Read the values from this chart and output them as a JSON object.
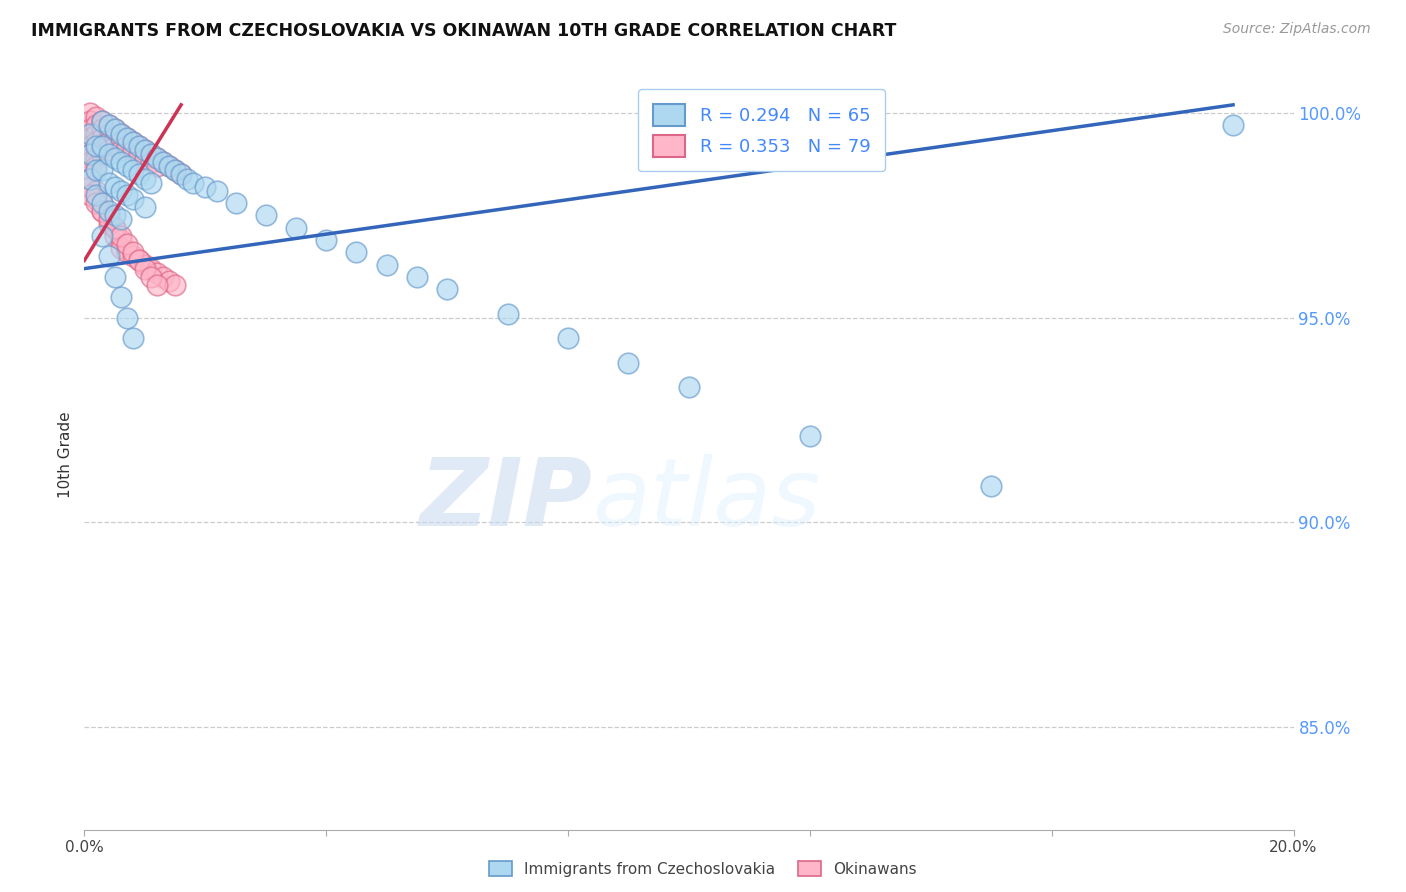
{
  "title": "IMMIGRANTS FROM CZECHOSLOVAKIA VS OKINAWAN 10TH GRADE CORRELATION CHART",
  "source": "Source: ZipAtlas.com",
  "ylabel": "10th Grade",
  "ylabel_right_labels": [
    "100.0%",
    "95.0%",
    "90.0%",
    "85.0%"
  ],
  "ylabel_right_values": [
    1.0,
    0.95,
    0.9,
    0.85
  ],
  "xmin": 0.0,
  "xmax": 0.2,
  "ymin": 0.825,
  "ymax": 1.008,
  "blue_label": "Immigrants from Czechoslovakia",
  "pink_label": "Okinawans",
  "blue_R": 0.294,
  "blue_N": 65,
  "pink_R": 0.353,
  "pink_N": 79,
  "blue_color": "#ADD8F0",
  "pink_color": "#FFB6C8",
  "blue_edge_color": "#6699CC",
  "pink_edge_color": "#DD6688",
  "blue_line_color": "#3366BB",
  "pink_line_color": "#CC3355",
  "watermark_zip": "ZIP",
  "watermark_atlas": "atlas",
  "blue_trend_x": [
    0.0,
    0.19
  ],
  "blue_trend_y": [
    0.962,
    1.002
  ],
  "pink_trend_x": [
    0.0,
    0.016
  ],
  "pink_trend_y": [
    0.964,
    1.002
  ],
  "blue_x": [
    0.001,
    0.001,
    0.001,
    0.002,
    0.002,
    0.002,
    0.003,
    0.003,
    0.003,
    0.003,
    0.004,
    0.004,
    0.004,
    0.004,
    0.005,
    0.005,
    0.005,
    0.005,
    0.006,
    0.006,
    0.006,
    0.006,
    0.007,
    0.007,
    0.007,
    0.008,
    0.008,
    0.008,
    0.009,
    0.009,
    0.01,
    0.01,
    0.01,
    0.011,
    0.011,
    0.012,
    0.013,
    0.014,
    0.015,
    0.016,
    0.017,
    0.018,
    0.02,
    0.022,
    0.025,
    0.03,
    0.035,
    0.04,
    0.045,
    0.05,
    0.055,
    0.06,
    0.07,
    0.08,
    0.09,
    0.1,
    0.12,
    0.15,
    0.19,
    0.003,
    0.004,
    0.005,
    0.006,
    0.007,
    0.008
  ],
  "blue_y": [
    0.995,
    0.99,
    0.984,
    0.992,
    0.986,
    0.98,
    0.998,
    0.992,
    0.986,
    0.978,
    0.997,
    0.99,
    0.983,
    0.976,
    0.996,
    0.989,
    0.982,
    0.975,
    0.995,
    0.988,
    0.981,
    0.974,
    0.994,
    0.987,
    0.98,
    0.993,
    0.986,
    0.979,
    0.992,
    0.985,
    0.991,
    0.984,
    0.977,
    0.99,
    0.983,
    0.989,
    0.988,
    0.987,
    0.986,
    0.985,
    0.984,
    0.983,
    0.982,
    0.981,
    0.978,
    0.975,
    0.972,
    0.969,
    0.966,
    0.963,
    0.96,
    0.957,
    0.951,
    0.945,
    0.939,
    0.933,
    0.921,
    0.909,
    0.997,
    0.97,
    0.965,
    0.96,
    0.955,
    0.95,
    0.945
  ],
  "pink_x": [
    0.001,
    0.001,
    0.001,
    0.001,
    0.001,
    0.001,
    0.001,
    0.001,
    0.002,
    0.002,
    0.002,
    0.002,
    0.002,
    0.002,
    0.002,
    0.003,
    0.003,
    0.003,
    0.003,
    0.003,
    0.004,
    0.004,
    0.004,
    0.004,
    0.005,
    0.005,
    0.005,
    0.006,
    0.006,
    0.006,
    0.007,
    0.007,
    0.008,
    0.008,
    0.009,
    0.009,
    0.01,
    0.01,
    0.011,
    0.011,
    0.012,
    0.012,
    0.013,
    0.014,
    0.015,
    0.016,
    0.001,
    0.001,
    0.002,
    0.002,
    0.003,
    0.003,
    0.004,
    0.004,
    0.005,
    0.005,
    0.006,
    0.006,
    0.007,
    0.008,
    0.009,
    0.01,
    0.011,
    0.012,
    0.013,
    0.014,
    0.015,
    0.001,
    0.002,
    0.003,
    0.004,
    0.005,
    0.006,
    0.007,
    0.008,
    0.009,
    0.01,
    0.011,
    0.012
  ],
  "pink_y": [
    1.0,
    0.998,
    0.996,
    0.994,
    0.992,
    0.99,
    0.988,
    0.986,
    0.999,
    0.997,
    0.995,
    0.993,
    0.991,
    0.989,
    0.987,
    0.998,
    0.996,
    0.994,
    0.992,
    0.99,
    0.997,
    0.995,
    0.993,
    0.991,
    0.996,
    0.994,
    0.992,
    0.995,
    0.993,
    0.991,
    0.994,
    0.992,
    0.993,
    0.991,
    0.992,
    0.99,
    0.991,
    0.989,
    0.99,
    0.988,
    0.989,
    0.987,
    0.988,
    0.987,
    0.986,
    0.985,
    0.984,
    0.982,
    0.981,
    0.979,
    0.978,
    0.976,
    0.975,
    0.973,
    0.972,
    0.97,
    0.969,
    0.967,
    0.966,
    0.965,
    0.964,
    0.963,
    0.962,
    0.961,
    0.96,
    0.959,
    0.958,
    0.98,
    0.978,
    0.976,
    0.974,
    0.972,
    0.97,
    0.968,
    0.966,
    0.964,
    0.962,
    0.96,
    0.958
  ]
}
